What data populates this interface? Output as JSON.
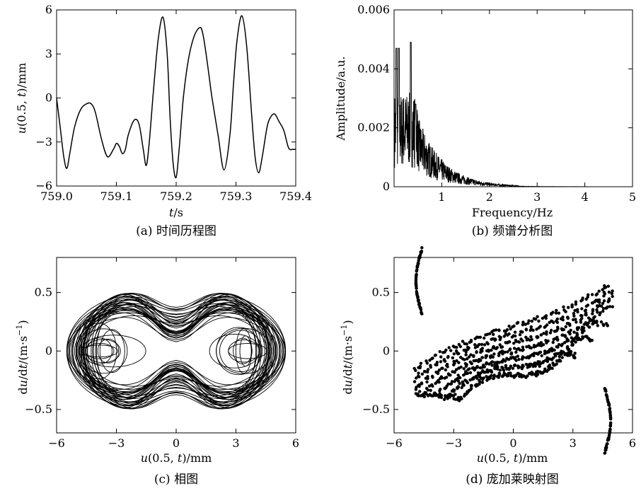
{
  "chart_data": [
    {
      "type": "line",
      "caption": "(a) 时间历程图",
      "xlabel": "t/s",
      "ylabel": "u(0.5, t)/mm",
      "xlim": [
        759.0,
        759.4
      ],
      "ylim": [
        -6,
        6
      ],
      "xticks": [
        "759.0",
        "759.1",
        "759.2",
        "759.3",
        "759.4"
      ],
      "yticks": [
        "6",
        "3",
        "0",
        "-3",
        "-6"
      ],
      "x": [
        759.0,
        759.006,
        759.012,
        759.017,
        759.022,
        759.03,
        759.04,
        759.05,
        759.058,
        759.065,
        759.075,
        759.085,
        759.095,
        759.1,
        759.105,
        759.11,
        759.115,
        759.12,
        759.13,
        759.138,
        759.145,
        759.15,
        759.155,
        759.162,
        759.17,
        759.178,
        759.185,
        759.19,
        759.195,
        759.2,
        759.205,
        759.212,
        759.22,
        759.23,
        759.24,
        759.245,
        759.25,
        759.255,
        759.26,
        759.27,
        759.28,
        759.29,
        759.296,
        759.302,
        759.31,
        759.318,
        759.326,
        759.332,
        759.338,
        759.344,
        759.352,
        759.358,
        759.365,
        759.372,
        759.38,
        759.388,
        759.395,
        759.4
      ],
      "y": [
        0.0,
        -2.0,
        -4.0,
        -4.8,
        -3.8,
        -2.0,
        -0.8,
        -0.4,
        -0.4,
        -1.0,
        -2.8,
        -4.0,
        -3.5,
        -3.1,
        -3.3,
        -3.8,
        -3.5,
        -2.5,
        -1.5,
        -1.8,
        -3.5,
        -4.6,
        -3.0,
        0.5,
        4.0,
        5.5,
        3.0,
        -1.5,
        -4.5,
        -5.4,
        -3.5,
        0.0,
        2.5,
        4.2,
        4.8,
        4.3,
        3.0,
        1.5,
        0.0,
        -2.5,
        -4.9,
        -2.5,
        1.0,
        4.0,
        5.6,
        3.5,
        -1.0,
        -4.0,
        -5.1,
        -4.0,
        -2.0,
        -1.3,
        -1.1,
        -1.6,
        -2.2,
        -3.4,
        -3.5,
        -3.5
      ]
    },
    {
      "type": "line",
      "caption": "(b) 频谱分析图",
      "xlabel": "Frequency/Hz",
      "ylabel": "Amplitude/a.u.",
      "xlim": [
        0,
        5
      ],
      "ylim": [
        0,
        0.006
      ],
      "xticks": [
        "1",
        "2",
        "3",
        "4",
        "5"
      ],
      "yticks": [
        "0.006",
        "0.004",
        "0.002",
        "0"
      ],
      "peaks": [
        [
          0.05,
          0.0047
        ],
        [
          0.1,
          0.0047
        ],
        [
          0.35,
          0.0049
        ],
        [
          0.45,
          0.0028
        ]
      ],
      "decay_tail": "amplitude decays to ~0 beyond 2.5 Hz"
    },
    {
      "type": "line",
      "caption": "(c) 相图",
      "xlabel": "u(0.5, t)/mm",
      "ylabel": "du/dt/(m·s⁻¹)",
      "xlim": [
        -6,
        6
      ],
      "ylim": [
        -0.7,
        0.8
      ],
      "xticks": [
        "-6",
        "-3",
        "0",
        "3",
        "6"
      ],
      "yticks": [
        "0.5",
        "0",
        "-0.5"
      ],
      "description_points": {
        "outer_extent_x": [
          -5.5,
          5.5
        ],
        "outer_extent_y": [
          -0.58,
          0.55
        ],
        "inner_loop_centers_x": [
          -3.5,
          3.3
        ]
      }
    },
    {
      "type": "scatter",
      "caption": "(d) 庞加莱映射图",
      "xlabel": "u(0.5, t)/mm",
      "ylabel": "du/dt/(m·s⁻¹)",
      "xlim": [
        -6,
        6
      ],
      "ylim": [
        -0.7,
        0.8
      ],
      "xticks": [
        "-6",
        "-3",
        "0",
        "3",
        "6"
      ],
      "yticks": [
        "0.5",
        "0",
        "-0.5"
      ],
      "extent": {
        "x": [
          -5.0,
          5.0
        ],
        "y": [
          -0.55,
          0.55
        ]
      }
    }
  ]
}
